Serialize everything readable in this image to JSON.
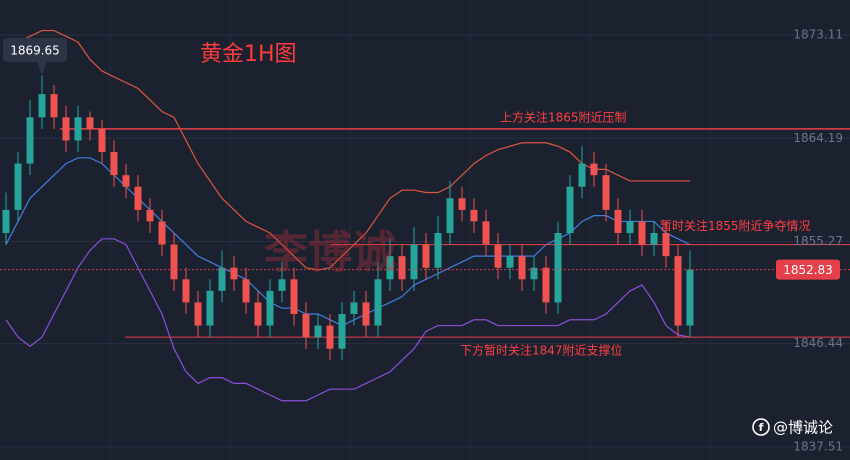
{
  "chart_data": {
    "type": "candlestick",
    "title": "黄金1H图",
    "watermark": "李博诚",
    "credit": "@博诚论",
    "ylim": [
      1836.38,
      1876.14
    ],
    "yticks": [
      1873.11,
      1864.19,
      1855.27,
      1846.44,
      1837.51
    ],
    "grid": true,
    "up_color": "#26a69a",
    "down_color": "#ef5350",
    "current_price": 1852.83,
    "high_marker": 1869.65,
    "candles": {
      "open": [
        1856,
        1858,
        1862,
        1866,
        1868,
        1866,
        1864,
        1866,
        1865,
        1863,
        1861,
        1860,
        1858,
        1857,
        1855,
        1852,
        1850,
        1848,
        1851,
        1853,
        1852,
        1850,
        1848,
        1851,
        1852,
        1849,
        1847,
        1848,
        1846,
        1849,
        1850,
        1848,
        1852,
        1854,
        1852,
        1855,
        1853,
        1856,
        1859,
        1858,
        1857,
        1855,
        1853,
        1854,
        1852,
        1853,
        1850,
        1856,
        1860,
        1862,
        1861,
        1858,
        1856,
        1857,
        1855,
        1856,
        1854,
        1848
      ],
      "high": [
        1859.5,
        1863,
        1867.5,
        1869.65,
        1868.8,
        1867,
        1867,
        1866.5,
        1865.8,
        1864,
        1862,
        1861,
        1859,
        1858,
        1856,
        1853,
        1851,
        1852,
        1854.5,
        1854,
        1853,
        1851,
        1852,
        1853.5,
        1853,
        1850,
        1849,
        1849,
        1850,
        1851,
        1851,
        1853.5,
        1855.5,
        1855,
        1856.5,
        1856,
        1857.5,
        1860.5,
        1860,
        1859,
        1858,
        1856,
        1855,
        1855,
        1854,
        1854,
        1857,
        1861,
        1863.5,
        1863,
        1862,
        1859,
        1858,
        1858,
        1857,
        1857,
        1855,
        1854.5
      ],
      "low": [
        1855,
        1857,
        1861,
        1865,
        1865,
        1863,
        1863,
        1864,
        1862,
        1860,
        1859,
        1857,
        1856,
        1854,
        1851,
        1849,
        1847,
        1847,
        1850,
        1851,
        1849,
        1847,
        1847,
        1850,
        1848,
        1846,
        1846,
        1845,
        1845,
        1848,
        1847,
        1847,
        1851,
        1851,
        1851,
        1852,
        1852,
        1855,
        1857,
        1856,
        1854,
        1852,
        1852,
        1851,
        1851,
        1849,
        1849,
        1855,
        1859,
        1860,
        1857,
        1855,
        1855,
        1854,
        1854,
        1853,
        1847,
        1847
      ],
      "close": [
        1858,
        1862,
        1866,
        1868,
        1866,
        1864,
        1866,
        1865,
        1863,
        1861,
        1860,
        1858,
        1857,
        1855,
        1852,
        1850,
        1848,
        1851,
        1853,
        1852,
        1850,
        1848,
        1851,
        1852,
        1849,
        1847,
        1848,
        1846,
        1849,
        1850,
        1848,
        1852,
        1854,
        1852,
        1855,
        1853,
        1856,
        1859,
        1858,
        1857,
        1855,
        1853,
        1854,
        1852,
        1853,
        1850,
        1856,
        1860,
        1862,
        1861,
        1858,
        1856,
        1857,
        1855,
        1856,
        1854,
        1848,
        1852.83
      ]
    },
    "series": [
      {
        "color": "#d9573f",
        "values": [
          1871.5,
          1872.5,
          1873,
          1873.5,
          1873.5,
          1873,
          1872.5,
          1871,
          1870,
          1869.5,
          1869,
          1868.5,
          1867.5,
          1866.5,
          1866,
          1864,
          1862,
          1860.5,
          1859,
          1858,
          1857,
          1856.5,
          1856,
          1855,
          1854,
          1853,
          1852.8,
          1853,
          1854,
          1855,
          1856,
          1857.5,
          1859,
          1859.7,
          1859.7,
          1859.5,
          1859.5,
          1860,
          1861,
          1862,
          1862.7,
          1863.2,
          1863.5,
          1863.8,
          1863.8,
          1863.8,
          1863.5,
          1863,
          1862,
          1861.5,
          1861.5,
          1861,
          1860.5,
          1860.5,
          1860.5,
          1860.5,
          1860.5,
          1860.5
        ]
      },
      {
        "color": "#3f7fe0",
        "values": [
          1855,
          1857,
          1859,
          1860,
          1861,
          1862,
          1862.5,
          1862.5,
          1862,
          1861,
          1860,
          1859,
          1858,
          1857,
          1856,
          1855,
          1854,
          1853.5,
          1853,
          1852.5,
          1852,
          1851,
          1850,
          1849.5,
          1849.5,
          1849,
          1849,
          1848.5,
          1848,
          1848.5,
          1849,
          1849.5,
          1850,
          1850.5,
          1851.5,
          1852,
          1852.5,
          1853,
          1853.5,
          1854,
          1854,
          1854,
          1854,
          1854,
          1854,
          1855,
          1855.5,
          1856,
          1857,
          1857.5,
          1857.5,
          1857,
          1857,
          1857,
          1857,
          1856,
          1855.5,
          1855
        ]
      },
      {
        "color": "#8a4fd8",
        "values": [
          1848.5,
          1847,
          1846.2,
          1847,
          1849,
          1851,
          1853,
          1854.5,
          1855.5,
          1855.5,
          1855,
          1853,
          1851,
          1849,
          1846,
          1844,
          1843,
          1843.5,
          1843.5,
          1843,
          1843,
          1842.5,
          1842,
          1841.5,
          1841.5,
          1841.5,
          1842,
          1842.5,
          1842.5,
          1842.5,
          1843,
          1843.5,
          1844,
          1845,
          1846,
          1847.5,
          1848,
          1848,
          1848,
          1848.5,
          1848.5,
          1848,
          1848,
          1848,
          1848,
          1848,
          1848,
          1848.5,
          1848.5,
          1848.5,
          1849,
          1850,
          1851,
          1851.5,
          1850,
          1848,
          1847.2,
          1847
        ]
      }
    ],
    "hlines": [
      {
        "value": 1865,
        "label": "上方关注1865附近压制"
      },
      {
        "value": 1855,
        "label": "暂时关注1855附近争夺情况"
      },
      {
        "value": 1847,
        "label": "下方暂时关注1847附近支撑位"
      }
    ]
  }
}
